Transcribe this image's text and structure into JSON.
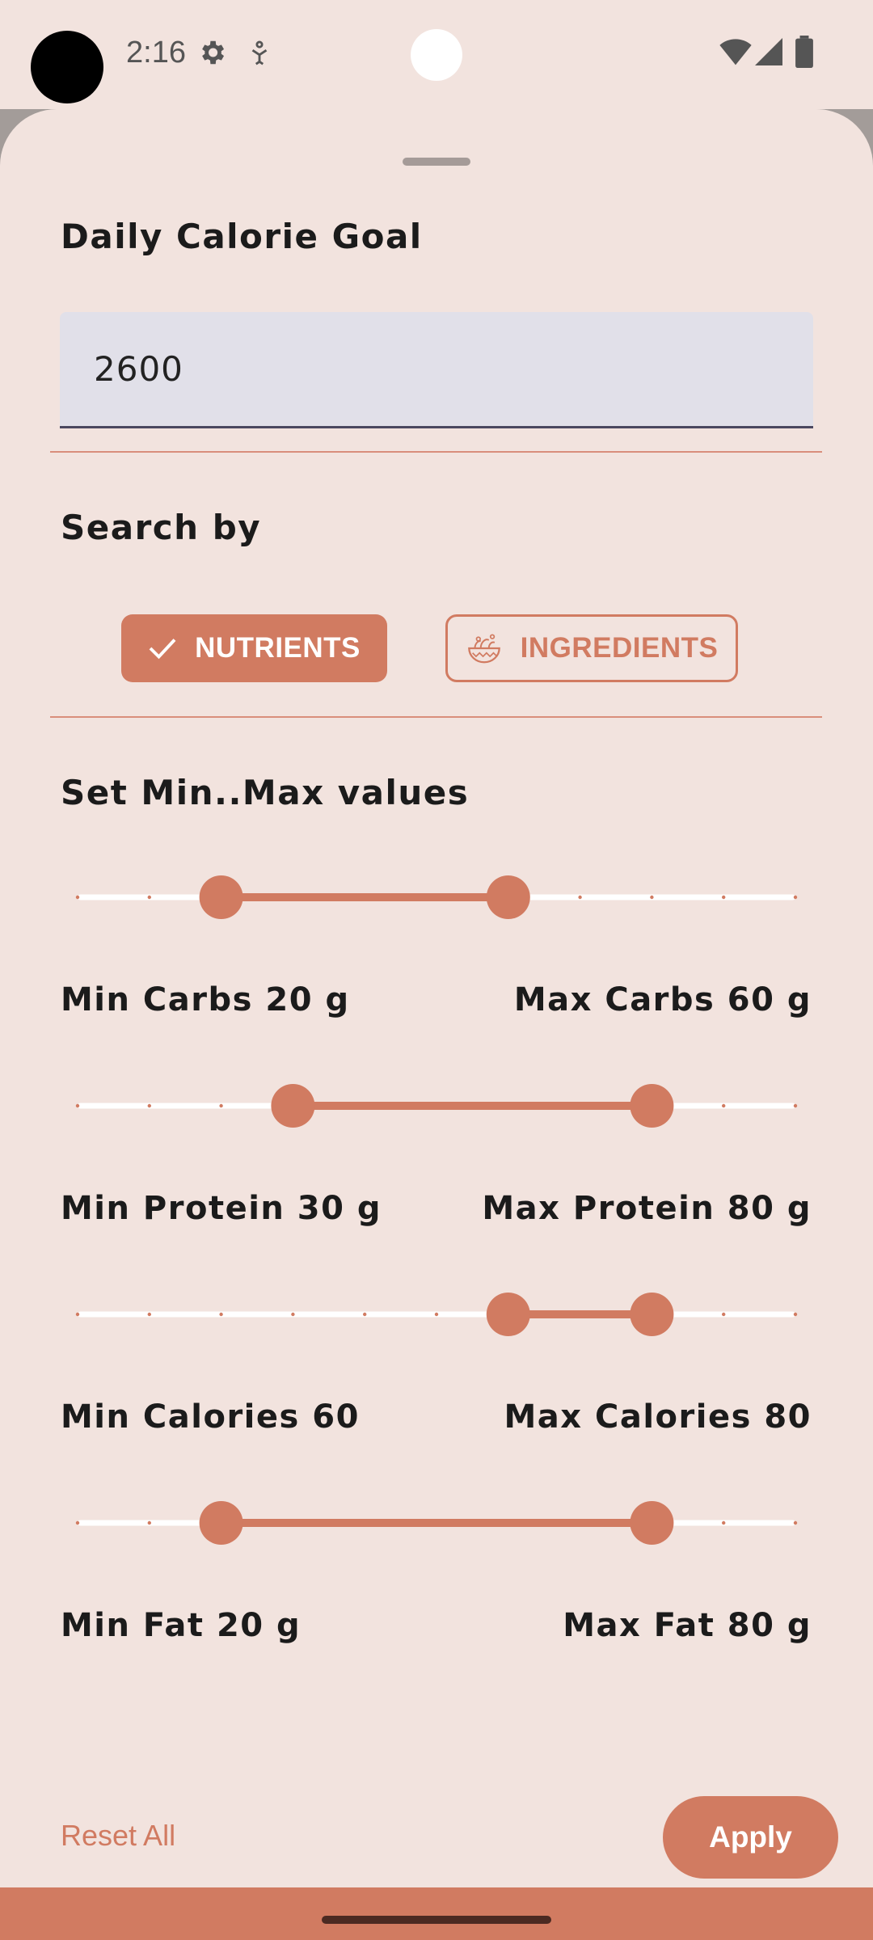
{
  "status_bar": {
    "time": "2:16",
    "icons": [
      "settings-icon",
      "accessibility-icon",
      "wifi-icon",
      "signal-icon",
      "battery-icon"
    ]
  },
  "calorie_goal": {
    "heading": "Daily Calorie Goal",
    "value": "2600"
  },
  "search_by": {
    "heading": "Search by",
    "options": [
      {
        "label": "NUTRIENTS",
        "selected": true,
        "icon": "check-icon"
      },
      {
        "label": "INGREDIENTS",
        "selected": false,
        "icon": "salad-bowl-icon"
      }
    ]
  },
  "ranges": {
    "heading": "Set Min..Max values",
    "sliders": [
      {
        "name": "carbs",
        "min_label": "Min Carbs 20 g",
        "max_label": "Max Carbs 60 g",
        "min_step": 2,
        "max_step": 6,
        "steps": 10
      },
      {
        "name": "protein",
        "min_label": "Min Protein 30 g",
        "max_label": "Max Protein 80 g",
        "min_step": 3,
        "max_step": 8,
        "steps": 10
      },
      {
        "name": "calories",
        "min_label": "Min Calories 60",
        "max_label": "Max Calories 80",
        "min_step": 6,
        "max_step": 8,
        "steps": 10
      },
      {
        "name": "fat",
        "min_label": "Min Fat 20 g",
        "max_label": "Max Fat 80 g",
        "min_step": 2,
        "max_step": 8,
        "steps": 10
      }
    ]
  },
  "footer": {
    "reset_label": "Reset All",
    "apply_label": "Apply"
  },
  "colors": {
    "accent": "#d17b61",
    "background": "#f2e3de",
    "track": "#ffffff"
  }
}
